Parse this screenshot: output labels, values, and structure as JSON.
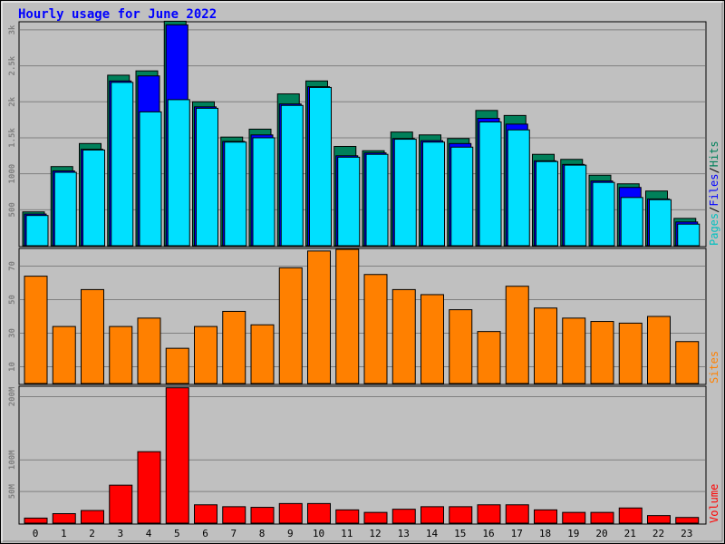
{
  "chart_data": [
    {
      "type": "bar",
      "title": "Hourly usage for June 2022",
      "categories": [
        "0",
        "1",
        "2",
        "3",
        "4",
        "5",
        "6",
        "7",
        "8",
        "9",
        "10",
        "11",
        "12",
        "13",
        "14",
        "15",
        "16",
        "17",
        "18",
        "19",
        "20",
        "21",
        "22",
        "23"
      ],
      "series": [
        {
          "name": "Hits",
          "values": [
            470,
            1100,
            1420,
            2370,
            2430,
            3120,
            2000,
            1510,
            1620,
            2110,
            2290,
            1380,
            1320,
            1580,
            1540,
            1490,
            1880,
            1810,
            1270,
            1200,
            980,
            860,
            760,
            380
          ]
        },
        {
          "name": "Files",
          "values": [
            440,
            1040,
            1340,
            2290,
            2360,
            3070,
            1930,
            1450,
            1540,
            1970,
            2210,
            1250,
            1290,
            1490,
            1460,
            1420,
            1770,
            1690,
            1180,
            1130,
            900,
            810,
            650,
            330
          ]
        },
        {
          "name": "Pages",
          "values": [
            420,
            1020,
            1330,
            2270,
            1860,
            2030,
            1910,
            1440,
            1500,
            1950,
            2200,
            1230,
            1270,
            1480,
            1440,
            1370,
            1720,
            1610,
            1170,
            1120,
            880,
            670,
            640,
            300
          ]
        }
      ],
      "ylim": [
        0,
        3100
      ],
      "ytick_labels": [
        "500",
        "1000",
        "1.5k",
        "2k",
        "2.5k",
        "3k"
      ],
      "ytick_values": [
        500,
        1000,
        1500,
        2000,
        2500,
        3000
      ],
      "legend": [
        "Pages",
        "/",
        "Files",
        "/",
        "Hits"
      ],
      "legend_placement": "right-vertical",
      "grid": true,
      "colors": {
        "Hits": "#00805a",
        "Files": "#0000ff",
        "Pages": "#00e0ff"
      }
    },
    {
      "type": "bar",
      "categories": [
        "0",
        "1",
        "2",
        "3",
        "4",
        "5",
        "6",
        "7",
        "8",
        "9",
        "10",
        "11",
        "12",
        "13",
        "14",
        "15",
        "16",
        "17",
        "18",
        "19",
        "20",
        "21",
        "22",
        "23"
      ],
      "series": [
        {
          "name": "Sites",
          "values": [
            64,
            34,
            56,
            34,
            39,
            21,
            34,
            43,
            35,
            69,
            79,
            80,
            65,
            56,
            53,
            44,
            31,
            58,
            45,
            39,
            37,
            36,
            40,
            25
          ]
        }
      ],
      "ylim": [
        0,
        80
      ],
      "ytick_labels": [
        "10",
        "30",
        "50",
        "70"
      ],
      "ytick_values": [
        10,
        30,
        50,
        70
      ],
      "ylabel": "Sites",
      "grid": true,
      "colors": {
        "Sites": "#ff8000"
      }
    },
    {
      "type": "bar",
      "categories": [
        "0",
        "1",
        "2",
        "3",
        "4",
        "5",
        "6",
        "7",
        "8",
        "9",
        "10",
        "11",
        "12",
        "13",
        "14",
        "15",
        "16",
        "17",
        "18",
        "19",
        "20",
        "21",
        "22",
        "23"
      ],
      "series": [
        {
          "name": "Volume",
          "values": [
            8,
            15,
            20,
            60,
            113,
            214,
            29,
            26,
            25,
            31,
            31,
            21,
            17,
            22,
            26,
            26,
            29,
            29,
            21,
            17,
            17,
            24,
            12,
            9
          ]
        }
      ],
      "unit": "M",
      "ylim": [
        0,
        215
      ],
      "ytick_labels": [
        "50M",
        "100M",
        "200M"
      ],
      "ytick_values": [
        50,
        100,
        200
      ],
      "ylabel": "Volume",
      "grid": true,
      "colors": {
        "Volume": "#ff0000"
      }
    }
  ],
  "colors": {
    "background": "#c0c0c0",
    "title": "#0000ff",
    "grid": "#808080",
    "axis_text": "#808080",
    "tick_text": "#000000"
  }
}
